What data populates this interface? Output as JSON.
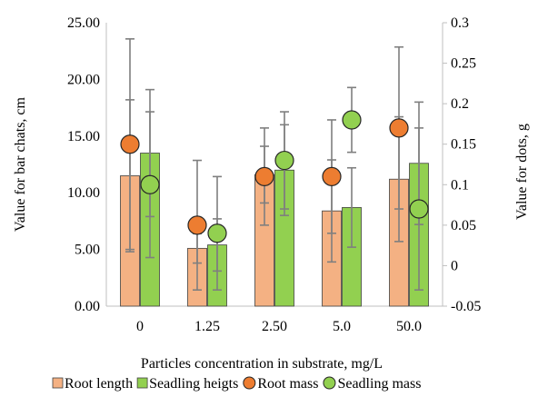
{
  "chart_data": {
    "type": "bar",
    "categories": [
      "0",
      "1.25",
      "2.50",
      "5.0",
      "50.0"
    ],
    "xlabel": "Particles concentration in substrate, mg/L",
    "ylabel": "Value for bar chats, cm",
    "y2label": "Value for dots, g",
    "ylim": [
      0,
      25
    ],
    "y2lim": [
      -0.05,
      0.3
    ],
    "yticks": [
      "0.00",
      "5.00",
      "10.00",
      "15.00",
      "20.00",
      "25.00"
    ],
    "y2ticks": [
      "-0.05",
      "0",
      "0.05",
      "0.1",
      "0.15",
      "0.2",
      "0.25",
      "0.3"
    ],
    "grid": false,
    "legend_position": "bottom",
    "bar_series": [
      {
        "name": "Root length",
        "color": "#F4B183",
        "values": [
          11.5,
          5.1,
          11.6,
          8.4,
          11.2
        ],
        "error": [
          6.7,
          1.3,
          2.5,
          4.5,
          5.5
        ]
      },
      {
        "name": "Seadling heigts",
        "color": "#92D050",
        "values": [
          13.5,
          5.4,
          12.0,
          8.7,
          12.6
        ],
        "error": [
          5.6,
          2.3,
          4.0,
          3.5,
          5.4
        ]
      }
    ],
    "dot_series": [
      {
        "name": "Root mass",
        "color": "#ED7D31",
        "axis": "right",
        "values": [
          0.15,
          0.05,
          0.11,
          0.11,
          0.17
        ],
        "error": [
          0.13,
          0.08,
          0.06,
          0.07,
          0.1
        ]
      },
      {
        "name": "Seadling mass",
        "color": "#92D050",
        "axis": "right",
        "values": [
          0.1,
          0.04,
          0.13,
          0.18,
          0.07
        ],
        "error": [
          0.09,
          0.07,
          0.06,
          0.04,
          0.1
        ]
      }
    ]
  }
}
